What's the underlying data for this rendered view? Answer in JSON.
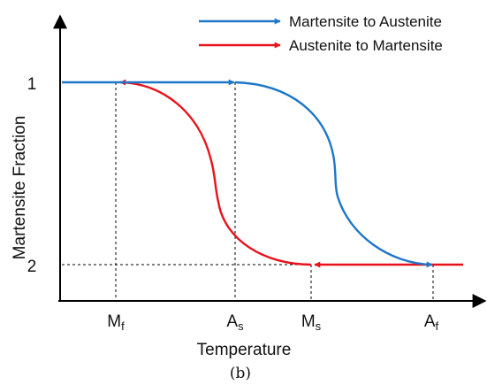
{
  "chart_data": {
    "type": "line",
    "title": "",
    "xlabel": "Temperature",
    "ylabel": "Martensite Fraction",
    "y_ticks": [
      "1",
      "2"
    ],
    "x_ticks": [
      {
        "base": "M",
        "sub": "f"
      },
      {
        "base": "A",
        "sub": "s"
      },
      {
        "base": "M",
        "sub": "s"
      },
      {
        "base": "A",
        "sub": "f"
      }
    ],
    "legend": {
      "placement": "top-right",
      "entries": [
        {
          "label": "Martensite to Austenite",
          "color": "#1f77c8"
        },
        {
          "label": "Austenite to Martensite",
          "color": "#e8121b"
        }
      ]
    },
    "grid": false,
    "guide_lines": "dashed"
  },
  "caption": "(b)"
}
